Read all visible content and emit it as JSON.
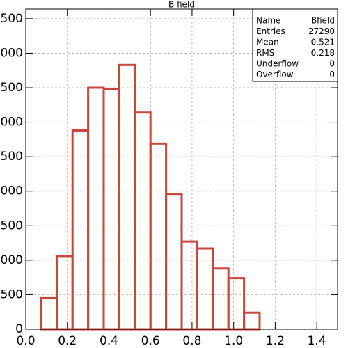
{
  "chart_data": {
    "type": "histogram",
    "title": "B field",
    "bins": [
      0,
      0.075,
      0.15,
      0.225,
      0.3,
      0.375,
      0.45,
      0.525,
      0.6,
      0.675,
      0.75,
      0.825,
      0.9,
      0.975,
      1.05,
      1.125,
      1.2,
      1.275,
      1.35,
      1.425,
      1.5
    ],
    "values": [
      0,
      450,
      1060,
      2880,
      3500,
      3480,
      3830,
      3140,
      2690,
      1960,
      1270,
      1170,
      880,
      740,
      240,
      0,
      0,
      0,
      0,
      0
    ],
    "color": "#c8463a",
    "xlim": [
      0,
      1.5
    ],
    "xticks": [
      {
        "value": 0,
        "label": "0.0"
      },
      0.2,
      0.4,
      0.6,
      0.8,
      {
        "value": 1,
        "label": "1.0"
      },
      1.2,
      1.4
    ],
    "ylim": [
      0,
      4640
    ],
    "yticks": [
      0,
      500,
      1000,
      1500,
      2000,
      2500,
      3000,
      3500,
      4000,
      4500
    ],
    "grid": true,
    "stats": [
      [
        "Name",
        "Bfield"
      ],
      [
        "Entries",
        27290
      ],
      [
        "Mean",
        0.521
      ],
      [
        "RMS",
        0.218
      ],
      [
        "Underflow",
        0
      ],
      [
        "Overflow",
        0
      ]
    ]
  }
}
